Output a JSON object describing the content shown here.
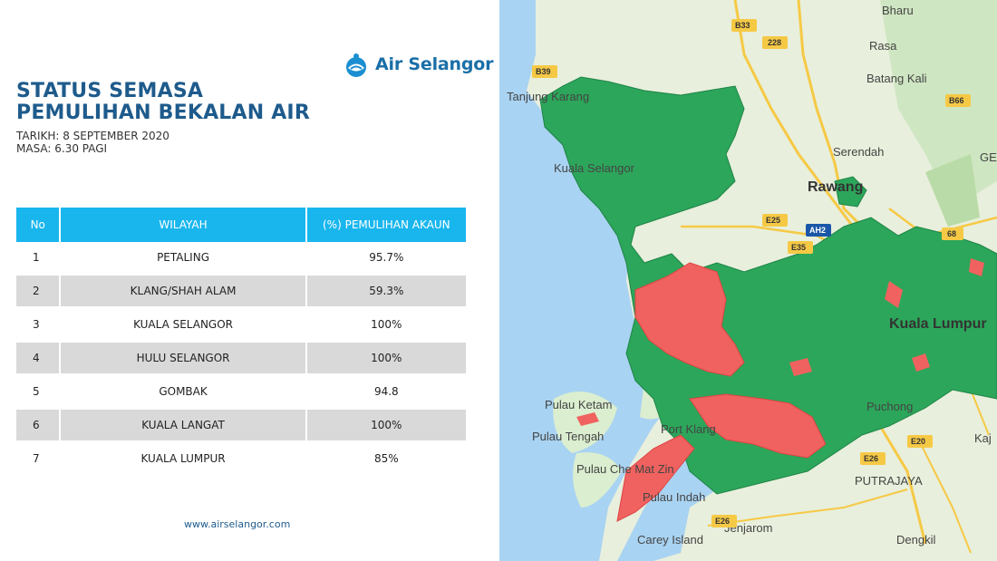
{
  "brand": {
    "name": "Air Selangor"
  },
  "header": {
    "title_line1": "STATUS SEMASA",
    "title_line2": "PEMULIHAN BEKALAN AIR",
    "date": "TARIKH: 8 SEPTEMBER 2020",
    "time": "MASA: 6.30 PAGI"
  },
  "table": {
    "headers": [
      "No",
      "WILAYAH",
      "(%) PEMULIHAN AKAUN"
    ],
    "rows": [
      {
        "no": "1",
        "wilayah": "PETALING",
        "pct": "95.7%"
      },
      {
        "no": "2",
        "wilayah": "KLANG/SHAH ALAM",
        "pct": "59.3%"
      },
      {
        "no": "3",
        "wilayah": "KUALA SELANGOR",
        "pct": "100%"
      },
      {
        "no": "4",
        "wilayah": "HULU SELANGOR",
        "pct": "100%"
      },
      {
        "no": "5",
        "wilayah": "GOMBAK",
        "pct": "94.8"
      },
      {
        "no": "6",
        "wilayah": "KUALA LANGAT",
        "pct": "100%"
      },
      {
        "no": "7",
        "wilayah": "KUALA LUMPUR",
        "pct": "85%"
      }
    ]
  },
  "footer": {
    "url": "www.airselangor.com"
  },
  "colors": {
    "header_bg": "#19b6ee",
    "title": "#1e5b8c",
    "restored": "#2ca65a",
    "not_restored": "#f0625f",
    "sea": "#a9d3f2",
    "land": "#e8efdc"
  },
  "map": {
    "places": {
      "bharu": "Bharu",
      "rasa": "Rasa",
      "batang_kali": "Batang Kali",
      "tanjung_karang": "Tanjung Karang",
      "serendah": "Serendah",
      "rawang": "Rawang",
      "kuala_selangor": "Kuala Selangor",
      "kuala_lumpur": "Kuala Lumpur",
      "puchong": "Puchong",
      "port_klang": "Port Klang",
      "pulau_ketam": "Pulau Ketam",
      "pulau_tengah": "Pulau Tengah",
      "pulau_che_mat_zin": "Pulau Che Mat Zin",
      "pulau_indah": "Pulau Indah",
      "putrajaya": "PUTRAJAYA",
      "jenjarom": "Jenjarom",
      "carey_island": "Carey Island",
      "dengkil": "Dengkil",
      "kajang": "Kaj",
      "gen": "GEN"
    },
    "roads": {
      "b33": "B33",
      "r228": "228",
      "b39": "B39",
      "b66": "B66",
      "e25": "E25",
      "ah2": "AH2",
      "e35": "E35",
      "r68": "68",
      "e20": "E20",
      "e26a": "E26",
      "e26b": "E26"
    }
  }
}
